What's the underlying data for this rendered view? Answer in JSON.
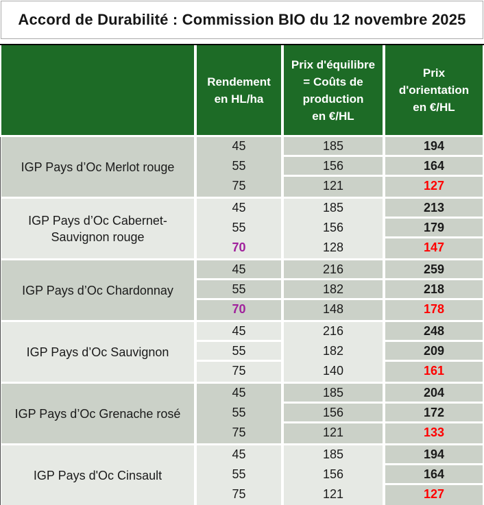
{
  "title": "Accord de Durabilité : Commission BIO du 12 novembre 2025",
  "header": {
    "product": "",
    "rendement": "Rendement\nen HL/ha",
    "equilibre": "Prix d'équilibre\n= Coûts de\nproduction\nen €/HL",
    "orientation": "Prix\nd'orientation\nen €/HL"
  },
  "colors": {
    "header_green": "#1d6b26",
    "band_dark": "#cbd1c8",
    "band_light": "#e6e9e4",
    "value_red": "#ff0000",
    "value_purple": "#a0219c",
    "header_text": "#ffffff",
    "body_text": "#1a1a1a"
  },
  "groups": [
    {
      "label": "IGP Pays d’Oc Merlot rouge",
      "shade": "dark",
      "gaps": {
        "rendement": false,
        "equilibre": true
      },
      "rows": [
        {
          "rendement": "45",
          "equilibre": "185",
          "orientation": "194",
          "rendement_style": "",
          "orientation_style": ""
        },
        {
          "rendement": "55",
          "equilibre": "156",
          "orientation": "164",
          "rendement_style": "",
          "orientation_style": ""
        },
        {
          "rendement": "75",
          "equilibre": "121",
          "orientation": "127",
          "rendement_style": "",
          "orientation_style": "red"
        }
      ]
    },
    {
      "label": "IGP Pays d’Oc Cabernet-Sauvignon rouge",
      "shade": "light",
      "gaps": {
        "rendement": false,
        "equilibre": false
      },
      "rows": [
        {
          "rendement": "45",
          "equilibre": "185",
          "orientation": "213",
          "rendement_style": "",
          "orientation_style": ""
        },
        {
          "rendement": "55",
          "equilibre": "156",
          "orientation": "179",
          "rendement_style": "",
          "orientation_style": ""
        },
        {
          "rendement": "70",
          "equilibre": "128",
          "orientation": "147",
          "rendement_style": "purple",
          "orientation_style": "red"
        }
      ]
    },
    {
      "label": "IGP Pays d’Oc Chardonnay",
      "shade": "dark",
      "gaps": {
        "rendement": true,
        "equilibre": true
      },
      "rows": [
        {
          "rendement": "45",
          "equilibre": "216",
          "orientation": "259",
          "rendement_style": "",
          "orientation_style": ""
        },
        {
          "rendement": "55",
          "equilibre": "182",
          "orientation": "218",
          "rendement_style": "",
          "orientation_style": ""
        },
        {
          "rendement": "70",
          "equilibre": "148",
          "orientation": "178",
          "rendement_style": "purple",
          "orientation_style": "red"
        }
      ]
    },
    {
      "label": "IGP Pays d’Oc Sauvignon",
      "shade": "light",
      "gaps": {
        "rendement": true,
        "equilibre": false
      },
      "rows": [
        {
          "rendement": "45",
          "equilibre": "216",
          "orientation": "248",
          "rendement_style": "",
          "orientation_style": ""
        },
        {
          "rendement": "55",
          "equilibre": "182",
          "orientation": "209",
          "rendement_style": "",
          "orientation_style": ""
        },
        {
          "rendement": "75",
          "equilibre": "140",
          "orientation": "161",
          "rendement_style": "",
          "orientation_style": "red"
        }
      ]
    },
    {
      "label": "IGP Pays d’Oc Grenache rosé",
      "shade": "dark",
      "gaps": {
        "rendement": false,
        "equilibre": true
      },
      "rows": [
        {
          "rendement": "45",
          "equilibre": "185",
          "orientation": "204",
          "rendement_style": "",
          "orientation_style": ""
        },
        {
          "rendement": "55",
          "equilibre": "156",
          "orientation": "172",
          "rendement_style": "",
          "orientation_style": ""
        },
        {
          "rendement": "75",
          "equilibre": "121",
          "orientation": "133",
          "rendement_style": "",
          "orientation_style": "red"
        }
      ]
    },
    {
      "label": "IGP Pays d'Oc Cinsault",
      "shade": "light",
      "gaps": {
        "rendement": false,
        "equilibre": false
      },
      "rows": [
        {
          "rendement": "45",
          "equilibre": "185",
          "orientation": "194",
          "rendement_style": "",
          "orientation_style": ""
        },
        {
          "rendement": "55",
          "equilibre": "156",
          "orientation": "164",
          "rendement_style": "",
          "orientation_style": ""
        },
        {
          "rendement": "75",
          "equilibre": "121",
          "orientation": "127",
          "rendement_style": "",
          "orientation_style": "red"
        }
      ]
    }
  ]
}
